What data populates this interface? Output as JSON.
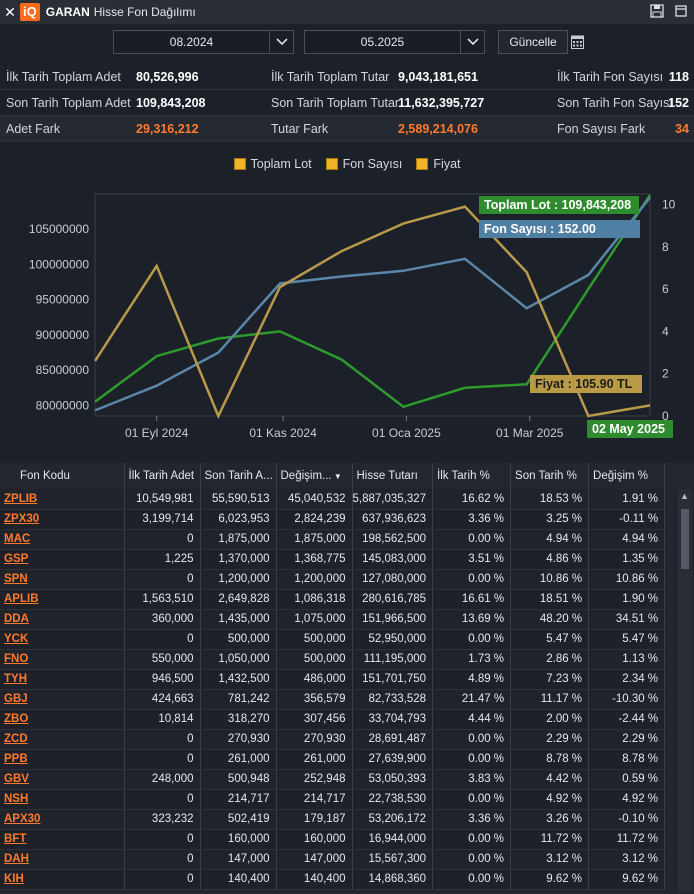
{
  "window": {
    "close": "✕",
    "logo": "iQ",
    "brand": "GARAN",
    "title": "Hisse Fon Dağılımı"
  },
  "controls": {
    "start_date": "08.2024",
    "end_date": "05.2025",
    "update_label": "Güncelle"
  },
  "summary": [
    [
      {
        "l": "İlk Tarih Toplam Adet",
        "v": "80,526,996"
      },
      {
        "l": "İlk Tarih Toplam Tutar",
        "v": "9,043,181,651"
      },
      {
        "l": "İlk Tarih Fon Sayısı",
        "v": "118"
      }
    ],
    [
      {
        "l": "Son Tarih Toplam Adet",
        "v": "109,843,208"
      },
      {
        "l": "Son Tarih Toplam Tutar",
        "v": "11,632,395,727"
      },
      {
        "l": "Son Tarih Fon Sayısı",
        "v": "152"
      }
    ],
    [
      {
        "l": "Adet Fark",
        "v": "29,316,212"
      },
      {
        "l": "Tutar Fark",
        "v": "2,589,214,076"
      },
      {
        "l": "Fon Sayısı Fark",
        "v": "34"
      }
    ]
  ],
  "legend": [
    "Toplam Lot",
    "Fon Sayısı",
    "Fiyat"
  ],
  "chart_data": {
    "type": "line",
    "x": [
      "2024-08",
      "2024-09",
      "2024-10",
      "2024-11",
      "2024-12",
      "2025-01",
      "2025-02",
      "2025-03",
      "2025-04",
      "2025-05"
    ],
    "x_tick_labels": [
      "01 Eyl 2024",
      "01 Kas 2024",
      "01 Oca 2025",
      "01 Mar 2025"
    ],
    "y_left_ticks": [
      "80000000",
      "85000000",
      "90000000",
      "95000000",
      "100000000",
      "105000000"
    ],
    "y_right_ticks": [
      "0",
      "2",
      "4",
      "6",
      "8",
      "10"
    ],
    "series": [
      {
        "name": "Toplam Lot",
        "color": "#2e9a2e",
        "axis": "left",
        "values": [
          80526996,
          87000000,
          89500000,
          90500000,
          86500000,
          79800000,
          82500000,
          83000000,
          96500000,
          109843208
        ]
      },
      {
        "name": "Fon Sayısı",
        "color": "#5a86a8",
        "axis": "left",
        "values": [
          79300000,
          82800000,
          87500000,
          97300000,
          98300000,
          99100000,
          100800000,
          93800000,
          98500000,
          109500000
        ]
      },
      {
        "name": "Fiyat",
        "color": "#b99a4a",
        "axis": "right",
        "values": [
          2.6,
          7.1,
          0,
          6.1,
          7.8,
          9.1,
          9.9,
          6.8,
          0,
          0.5
        ]
      }
    ],
    "tooltips": {
      "lot": "Toplam Lot : 109,843,208",
      "fon": "Fon Sayısı : 152.00",
      "price": "Fiyat : 105.90 TL",
      "date": "02 May 2025"
    },
    "ylim_left": [
      78500000,
      110000000
    ],
    "ylim_right": [
      0,
      10.5
    ]
  },
  "table": {
    "headers": [
      "Fon Kodu",
      "İlk Tarih Adet",
      "Son Tarih A...",
      "Değişim...",
      "Hisse Tutarı",
      "İlk Tarih %",
      "Son Tarih %",
      "Değişim %"
    ],
    "rows": [
      [
        "ZPLIB",
        "10,549,981",
        "55,590,513",
        "45,040,532",
        "5,887,035,327",
        "16.62 %",
        "18.53 %",
        "1.91 %"
      ],
      [
        "ZPX30",
        "3,199,714",
        "6,023,953",
        "2,824,239",
        "637,936,623",
        "3.36 %",
        "3.25 %",
        "-0.11 %"
      ],
      [
        "MAC",
        "0",
        "1,875,000",
        "1,875,000",
        "198,562,500",
        "0.00 %",
        "4.94 %",
        "4.94 %"
      ],
      [
        "GSP",
        "1,225",
        "1,370,000",
        "1,368,775",
        "145,083,000",
        "3.51 %",
        "4.86 %",
        "1.35 %"
      ],
      [
        "SPN",
        "0",
        "1,200,000",
        "1,200,000",
        "127,080,000",
        "0.00 %",
        "10.86 %",
        "10.86 %"
      ],
      [
        "APLIB",
        "1,563,510",
        "2,649,828",
        "1,086,318",
        "280,616,785",
        "16.61 %",
        "18.51 %",
        "1.90 %"
      ],
      [
        "DDA",
        "360,000",
        "1,435,000",
        "1,075,000",
        "151,966,500",
        "13.69 %",
        "48.20 %",
        "34.51 %"
      ],
      [
        "YCK",
        "0",
        "500,000",
        "500,000",
        "52,950,000",
        "0.00 %",
        "5.47 %",
        "5.47 %"
      ],
      [
        "FNO",
        "550,000",
        "1,050,000",
        "500,000",
        "111,195,000",
        "1.73 %",
        "2.86 %",
        "1.13 %"
      ],
      [
        "TYH",
        "946,500",
        "1,432,500",
        "486,000",
        "151,701,750",
        "4.89 %",
        "7.23 %",
        "2.34 %"
      ],
      [
        "GBJ",
        "424,663",
        "781,242",
        "356,579",
        "82,733,528",
        "21.47 %",
        "11.17 %",
        "-10.30 %"
      ],
      [
        "ZBO",
        "10,814",
        "318,270",
        "307,456",
        "33,704,793",
        "4.44 %",
        "2.00 %",
        "-2.44 %"
      ],
      [
        "ZCD",
        "0",
        "270,930",
        "270,930",
        "28,691,487",
        "0.00 %",
        "2.29 %",
        "2.29 %"
      ],
      [
        "PPB",
        "0",
        "261,000",
        "261,000",
        "27,639,900",
        "0.00 %",
        "8.78 %",
        "8.78 %"
      ],
      [
        "GBV",
        "248,000",
        "500,948",
        "252,948",
        "53,050,393",
        "3.83 %",
        "4.42 %",
        "0.59 %"
      ],
      [
        "NSH",
        "0",
        "214,717",
        "214,717",
        "22,738,530",
        "0.00 %",
        "4.92 %",
        "4.92 %"
      ],
      [
        "APX30",
        "323,232",
        "502,419",
        "179,187",
        "53,206,172",
        "3.36 %",
        "3.26 %",
        "-0.10 %"
      ],
      [
        "BFT",
        "0",
        "160,000",
        "160,000",
        "16,944,000",
        "0.00 %",
        "11.72 %",
        "11.72 %"
      ],
      [
        "DAH",
        "0",
        "147,000",
        "147,000",
        "15,567,300",
        "0.00 %",
        "3.12 %",
        "3.12 %"
      ],
      [
        "KIH",
        "0",
        "140,400",
        "140,400",
        "14,868,360",
        "0.00 %",
        "9.62 %",
        "9.62 %"
      ]
    ]
  }
}
